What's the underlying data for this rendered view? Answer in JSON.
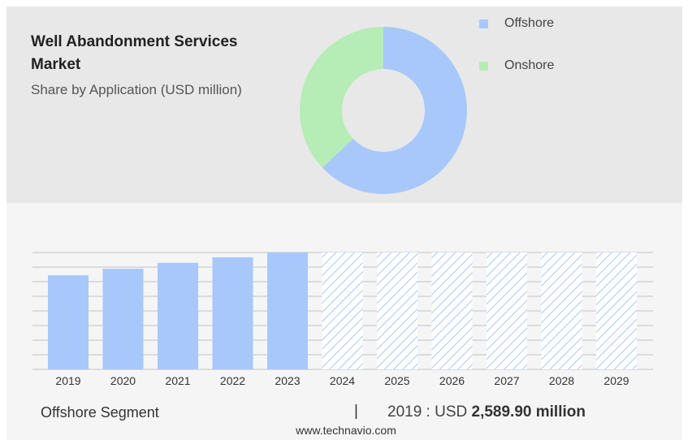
{
  "header": {
    "title": "Well Abandonment Services Market",
    "subtitle": "Share by Application (USD million)"
  },
  "legend": [
    {
      "label": "Offshore",
      "color": "#a8c8fb"
    },
    {
      "label": "Onshore",
      "color": "#b6ecb6"
    }
  ],
  "chart_data": [
    {
      "type": "pie",
      "categories": [
        "Offshore",
        "Onshore"
      ],
      "values": [
        63,
        37
      ],
      "colors": [
        "#a8c8fb",
        "#b6ecb6"
      ],
      "donut": true
    },
    {
      "type": "bar",
      "categories": [
        "2019",
        "2020",
        "2021",
        "2022",
        "2023",
        "2024",
        "2025",
        "2026",
        "2027",
        "2028",
        "2029"
      ],
      "values": [
        2589.9,
        2773,
        2934,
        3086,
        3219,
        3219,
        3219,
        3219,
        3219,
        3219,
        3219
      ],
      "forecast_from": "2024",
      "ylim": [
        0,
        3219
      ],
      "grid": true,
      "color": "#a8c8fb"
    }
  ],
  "footer": {
    "segment_label": "Offshore Segment",
    "separator": "|",
    "value_prefix": "2019 : USD",
    "value_amount": "2,589.90 million"
  },
  "source": "www.technavio.com"
}
